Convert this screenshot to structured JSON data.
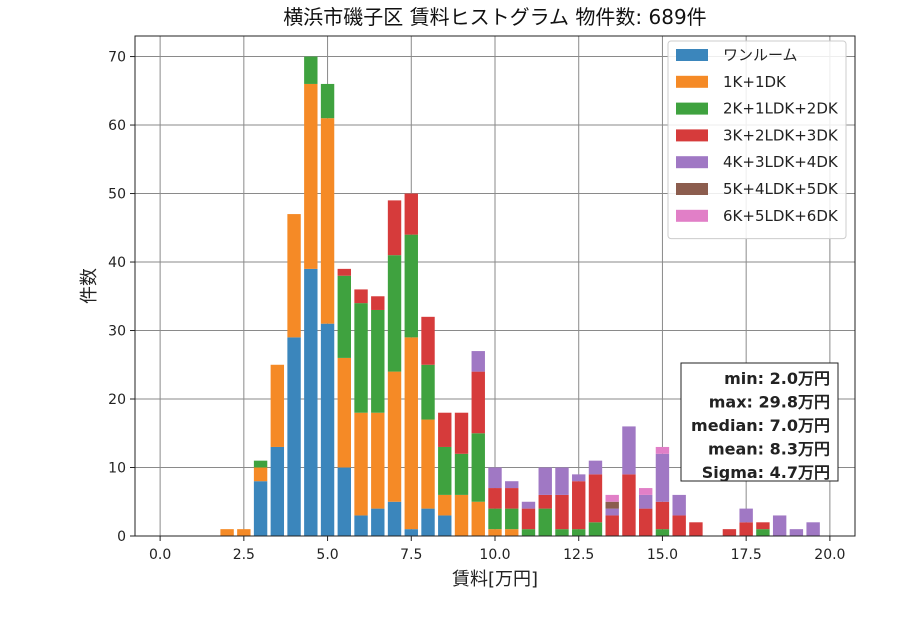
{
  "chart_data": {
    "type": "bar",
    "stacked": true,
    "title": "横浜市磯子区 賃料ヒストグラム 物件数: 689件",
    "xlabel": "賃料[万円]",
    "ylabel": "件数",
    "xlim": [
      -0.75,
      20.75
    ],
    "ylim": [
      0,
      73
    ],
    "xticks": [
      0.0,
      2.5,
      5.0,
      7.5,
      10.0,
      12.5,
      15.0,
      17.5,
      20.0
    ],
    "xtick_labels": [
      "0.0",
      "2.5",
      "5.0",
      "7.5",
      "10.0",
      "12.5",
      "15.0",
      "17.5",
      "20.0"
    ],
    "yticks": [
      0,
      10,
      20,
      30,
      40,
      50,
      60,
      70
    ],
    "grid": true,
    "legend_position": "top-right",
    "bin_width": 0.5,
    "bin_starts": [
      1.75,
      2.25,
      2.75,
      3.25,
      3.75,
      4.25,
      4.75,
      5.25,
      5.75,
      6.25,
      6.75,
      7.25,
      7.75,
      8.25,
      8.75,
      9.25,
      9.75,
      10.25,
      10.75,
      11.25,
      11.75,
      12.25,
      12.75,
      13.25,
      13.75,
      14.25,
      14.75,
      15.25,
      15.75,
      16.75,
      17.25,
      17.75,
      18.25,
      18.75,
      19.25
    ],
    "series": [
      {
        "name": "ワンルーム",
        "color": "#3b86bc",
        "values": [
          0,
          0,
          8,
          13,
          29,
          39,
          31,
          10,
          3,
          4,
          5,
          1,
          4,
          3,
          0,
          0,
          0,
          0,
          0,
          0,
          0,
          0,
          0,
          0,
          0,
          0,
          0,
          0,
          0,
          0,
          0,
          0,
          0,
          0,
          0
        ]
      },
      {
        "name": "1K+1DK",
        "color": "#f58a26",
        "values": [
          1,
          1,
          2,
          12,
          18,
          27,
          30,
          16,
          15,
          14,
          19,
          28,
          13,
          3,
          6,
          5,
          1,
          1,
          0,
          0,
          0,
          0,
          0,
          0,
          0,
          0,
          0,
          0,
          0,
          0,
          0,
          0,
          0,
          0,
          0
        ]
      },
      {
        "name": "2K+1LDK+2DK",
        "color": "#3fa23f",
        "values": [
          0,
          0,
          1,
          0,
          0,
          4,
          5,
          12,
          16,
          15,
          17,
          15,
          8,
          7,
          6,
          10,
          3,
          3,
          1,
          4,
          1,
          1,
          2,
          0,
          0,
          0,
          1,
          0,
          0,
          0,
          0,
          1,
          0,
          0,
          0
        ]
      },
      {
        "name": "3K+2LDK+3DK",
        "color": "#d63b3b",
        "values": [
          0,
          0,
          0,
          0,
          0,
          0,
          0,
          1,
          2,
          2,
          8,
          6,
          7,
          5,
          6,
          9,
          3,
          3,
          3,
          2,
          5,
          7,
          7,
          3,
          9,
          4,
          4,
          3,
          2,
          1,
          2,
          1,
          0,
          0,
          0
        ]
      },
      {
        "name": "4K+3LDK+4DK",
        "color": "#a078c4",
        "values": [
          0,
          0,
          0,
          0,
          0,
          0,
          0,
          0,
          0,
          0,
          0,
          0,
          0,
          0,
          0,
          3,
          3,
          1,
          1,
          4,
          4,
          1,
          2,
          1,
          7,
          2,
          7,
          3,
          0,
          0,
          2,
          0,
          3,
          1,
          2
        ]
      },
      {
        "name": "5K+4LDK+5DK",
        "color": "#8c5d4e",
        "values": [
          0,
          0,
          0,
          0,
          0,
          0,
          0,
          0,
          0,
          0,
          0,
          0,
          0,
          0,
          0,
          0,
          0,
          0,
          0,
          0,
          0,
          0,
          0,
          1,
          0,
          0,
          0,
          0,
          0,
          0,
          0,
          0,
          0,
          0,
          0
        ]
      },
      {
        "name": "6K+5LDK+6DK",
        "color": "#e17fc7",
        "values": [
          0,
          0,
          0,
          0,
          0,
          0,
          0,
          0,
          0,
          0,
          0,
          0,
          0,
          0,
          0,
          0,
          0,
          0,
          0,
          0,
          0,
          0,
          0,
          1,
          0,
          1,
          1,
          0,
          0,
          0,
          0,
          0,
          0,
          0,
          0
        ]
      }
    ],
    "stats_box": [
      "min: 2.0万円",
      "max: 29.8万円",
      "median: 7.0万円",
      "mean: 8.3万円",
      "Sigma: 4.7万円"
    ]
  }
}
